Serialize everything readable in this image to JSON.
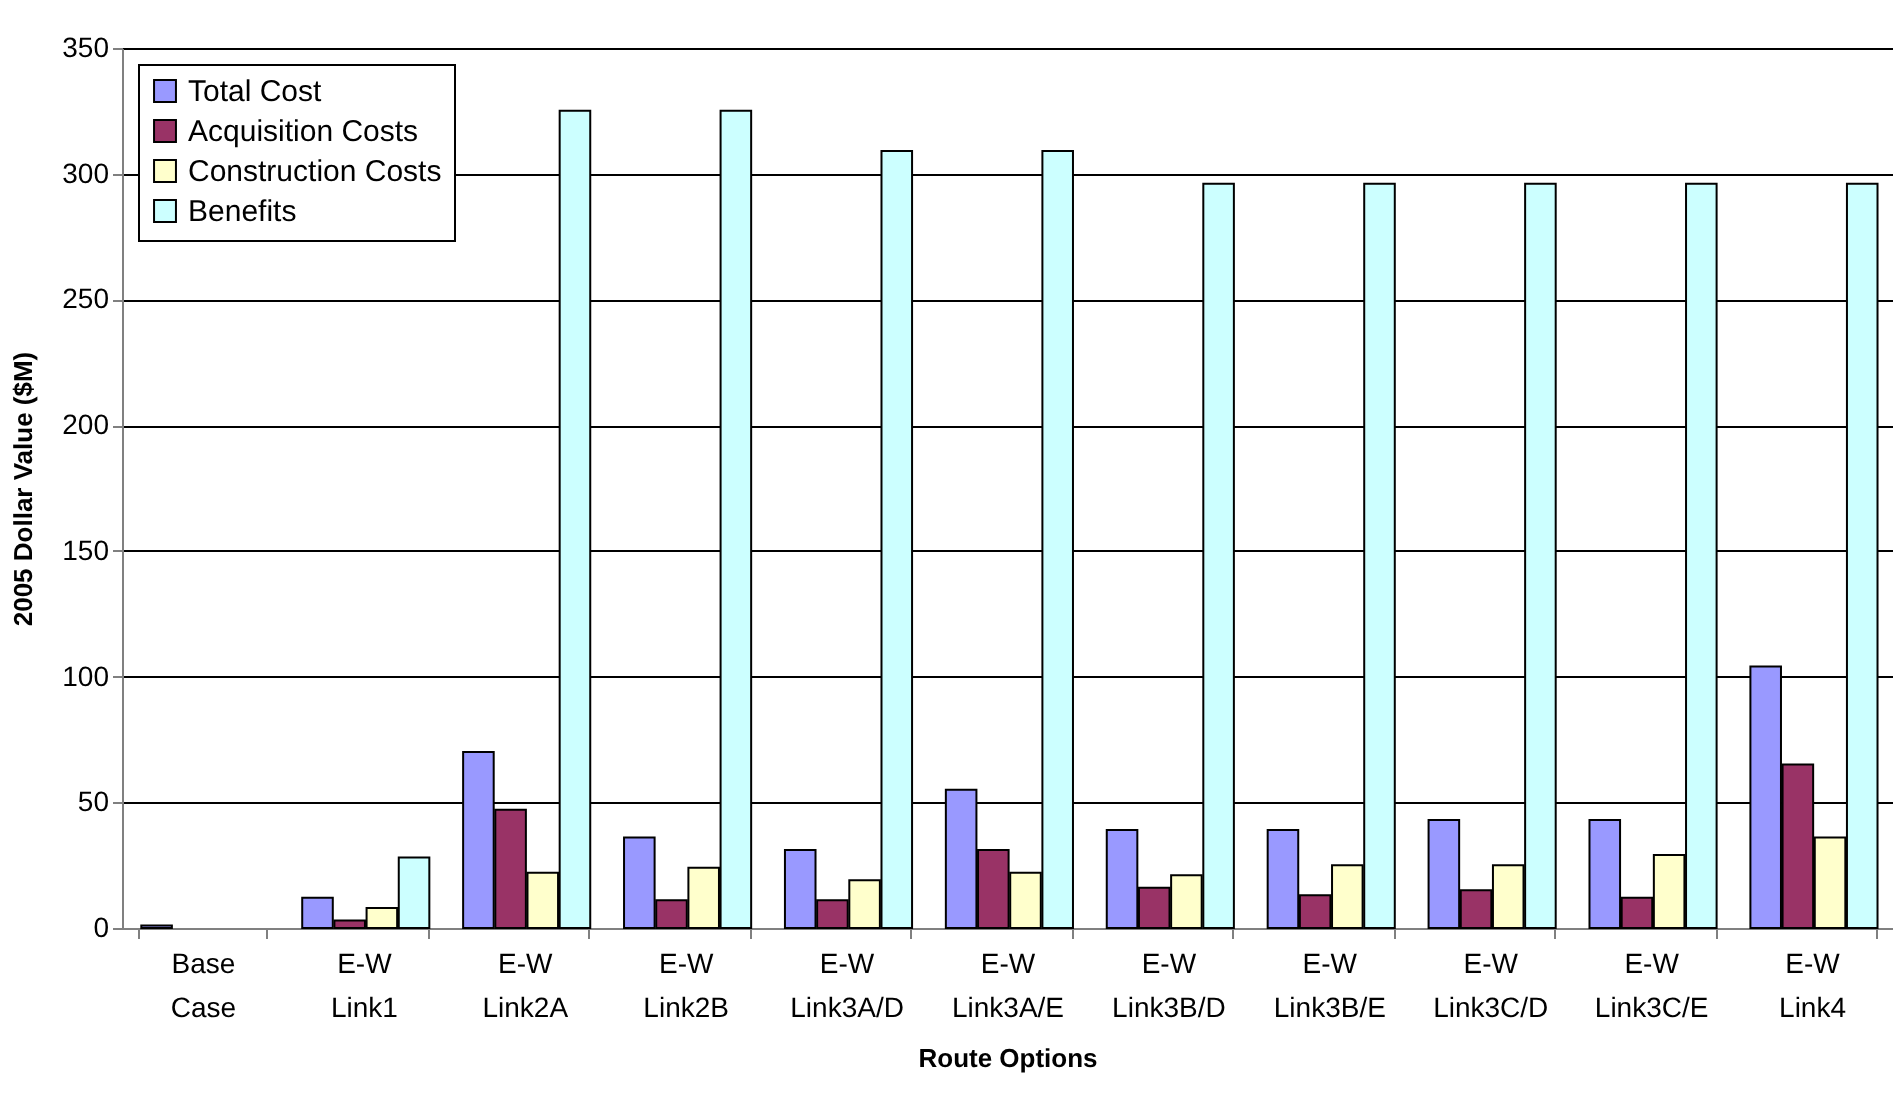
{
  "chart_data": {
    "type": "bar",
    "xlabel": "Route Options",
    "ylabel": "2005 Dollar Value ($M)",
    "categories": [
      "Base Case",
      "E-W Link1",
      "E-W Link2A",
      "E-W Link2B",
      "E-W Link3A/D",
      "E-W Link3A/E",
      "E-W Link3B/D",
      "E-W Link3B/E",
      "E-W Link3C/D",
      "E-W Link3C/E",
      "E-W Link4"
    ],
    "series": [
      {
        "name": "Total Cost",
        "color": "#9999ff",
        "values": [
          1,
          12,
          70,
          36,
          31,
          55,
          39,
          39,
          43,
          43,
          104
        ]
      },
      {
        "name": "Acquisition Costs",
        "color": "#993366",
        "values": [
          null,
          3,
          47,
          11,
          11,
          31,
          16,
          13,
          15,
          12,
          65
        ]
      },
      {
        "name": "Construction Costs",
        "color": "#ffffcc",
        "values": [
          null,
          8,
          22,
          24,
          19,
          22,
          21,
          25,
          25,
          29,
          36
        ]
      },
      {
        "name": "Benefits",
        "color": "#ccffff",
        "values": [
          null,
          28,
          325,
          325,
          309,
          309,
          296,
          296,
          296,
          296,
          296
        ]
      }
    ],
    "ylim": [
      0,
      350
    ],
    "yticks": [
      0,
      50,
      100,
      150,
      200,
      250,
      300,
      350
    ],
    "grid": "y",
    "legend": "top left"
  }
}
